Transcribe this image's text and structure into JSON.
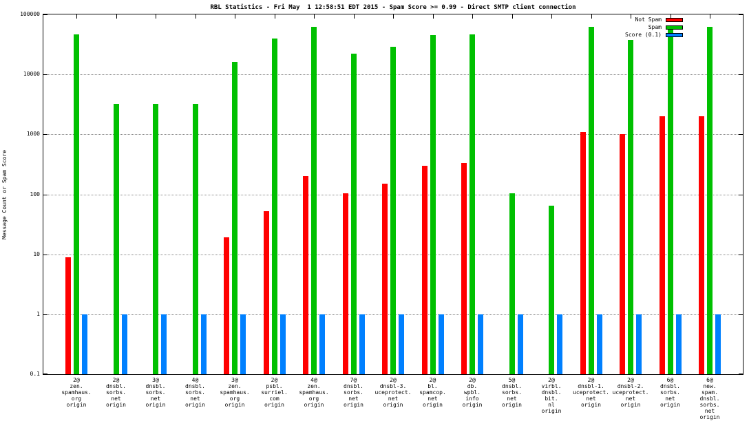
{
  "chart_data": {
    "type": "bar",
    "title": "RBL Statistics - Fri May  1 12:58:51 EDT 2015 - Spam Score >= 0.99 - Direct SMTP client connection",
    "ylabel": "Message Count or Spam Score",
    "xlabel": "",
    "scale": "log",
    "grid": true,
    "legend_position": "top-right-inside",
    "ylim": [
      0.1,
      100000
    ],
    "yticks": [
      {
        "v": 0.1,
        "label": "0.1"
      },
      {
        "v": 1,
        "label": "1"
      },
      {
        "v": 10,
        "label": "10"
      },
      {
        "v": 100,
        "label": "100"
      },
      {
        "v": 1000,
        "label": "1000"
      },
      {
        "v": 10000,
        "label": "10000"
      },
      {
        "v": 100000,
        "label": "100000"
      }
    ],
    "categories": [
      [
        "2@",
        "zen.",
        "spamhaus.",
        "org",
        "origin"
      ],
      [
        "2@",
        "dnsbl.",
        "sorbs.",
        "net",
        "origin"
      ],
      [
        "3@",
        "dnsbl.",
        "sorbs.",
        "net",
        "origin"
      ],
      [
        "4@",
        "dnsbl.",
        "sorbs.",
        "net",
        "origin"
      ],
      [
        "3@",
        "zen.",
        "spamhaus.",
        "org",
        "origin"
      ],
      [
        "2@",
        "psbl.",
        "surriel.",
        "com",
        "origin"
      ],
      [
        "4@",
        "zen.",
        "spamhaus.",
        "org",
        "origin"
      ],
      [
        "7@",
        "dnsbl.",
        "sorbs.",
        "net",
        "origin"
      ],
      [
        "2@",
        "dnsbl-3.",
        "uceprotect.",
        "net",
        "origin"
      ],
      [
        "2@",
        "bl.",
        "spamcop.",
        "net",
        "origin"
      ],
      [
        "2@",
        "db.",
        "wpbl.",
        "info",
        "origin"
      ],
      [
        "5@",
        "dnsbl.",
        "sorbs.",
        "net",
        "origin"
      ],
      [
        "2@",
        "virbl.",
        "dnsbl.",
        "bit.",
        "nl",
        "origin"
      ],
      [
        "2@",
        "dnsbl-1.",
        "uceprotect.",
        "net",
        "origin"
      ],
      [
        "2@",
        "dnsbl-2.",
        "uceprotect.",
        "net",
        "origin"
      ],
      [
        "6@",
        "dnsbl.",
        "sorbs.",
        "net",
        "origin"
      ],
      [
        "6@",
        "new.",
        "spam.",
        "dnsbl.",
        "sorbs.",
        "net",
        "origin"
      ]
    ],
    "series": [
      {
        "name": "Not Spam",
        "color": "#ff0000",
        "values": [
          9,
          0,
          0,
          0,
          19,
          52,
          200,
          105,
          150,
          300,
          330,
          0,
          0,
          1100,
          1000,
          2000,
          2000
        ]
      },
      {
        "name": "Spam",
        "color": "#00c000",
        "values": [
          46000,
          3200,
          3200,
          3200,
          16000,
          40000,
          62000,
          22000,
          29000,
          45000,
          47000,
          105,
          65,
          62000,
          38000,
          62000,
          62000
        ]
      },
      {
        "name": "Score (0.1)",
        "color": "#0080ff",
        "values": [
          1,
          1,
          1,
          1,
          1,
          1,
          1,
          1,
          1,
          1,
          1,
          1,
          1,
          1,
          1,
          1,
          1
        ]
      }
    ]
  }
}
